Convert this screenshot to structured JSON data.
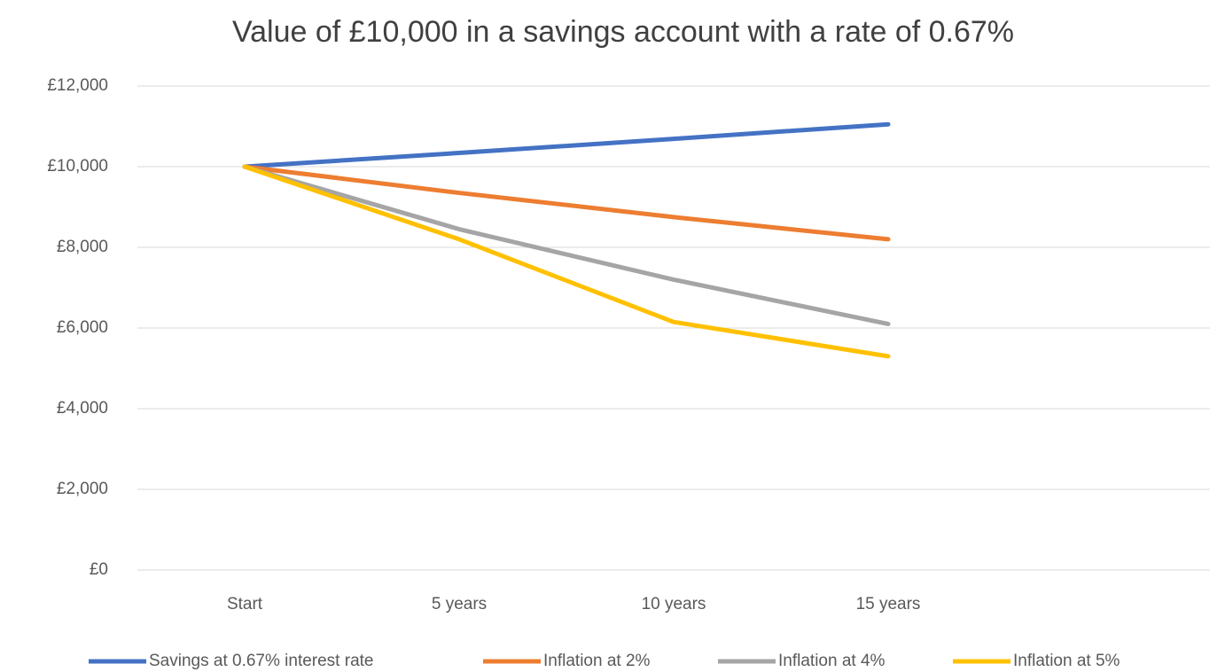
{
  "chart_data": {
    "type": "line",
    "title": "Value of £10,000 in a savings account with a rate of 0.67%",
    "categories": [
      "Start",
      "5 years",
      "10 years",
      "15 years",
      null
    ],
    "series": [
      {
        "name": "Savings at 0.67% interest rate",
        "color": "#4472c4",
        "values": [
          10000,
          10340,
          10690,
          11050,
          null
        ]
      },
      {
        "name": "Inflation at 2%",
        "color": "#ed7d31",
        "values": [
          10000,
          9350,
          8750,
          8200,
          null
        ]
      },
      {
        "name": "Inflation at 4%",
        "color": "#a5a5a5",
        "values": [
          10000,
          8450,
          7200,
          6100,
          null
        ]
      },
      {
        "name": "Inflation at 5%",
        "color": "#ffc000",
        "values": [
          10000,
          8200,
          6150,
          5300,
          null
        ]
      }
    ],
    "ylim": [
      0,
      12000
    ],
    "yticks": [
      {
        "value": 0,
        "label": "£0"
      },
      {
        "value": 2000,
        "label": "£2,000"
      },
      {
        "value": 4000,
        "label": "£4,000"
      },
      {
        "value": 6000,
        "label": "£6,000"
      },
      {
        "value": 8000,
        "label": "£8,000"
      },
      {
        "value": 10000,
        "label": "£10,000"
      },
      {
        "value": 12000,
        "label": "£12,000"
      }
    ],
    "grid": true,
    "legend": "bottom"
  }
}
